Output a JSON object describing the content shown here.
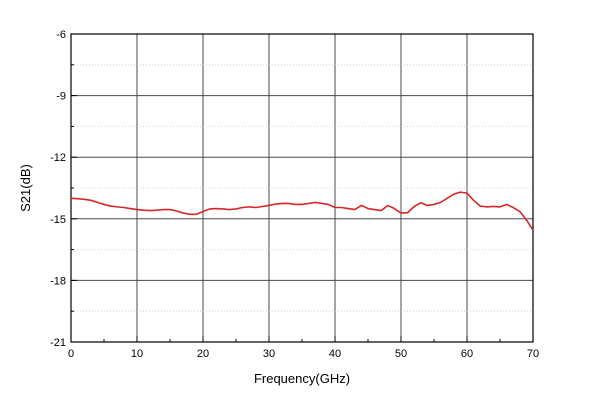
{
  "chart_data": {
    "type": "line",
    "title": "",
    "xlabel": "Frequency(GHz)",
    "ylabel": "S21(dB)",
    "xlim": [
      0,
      70
    ],
    "ylim": [
      -21,
      -6
    ],
    "x_ticks": [
      0,
      10,
      20,
      30,
      40,
      50,
      60,
      70
    ],
    "y_ticks": [
      -21,
      -18,
      -15,
      -12,
      -9,
      -6
    ],
    "x_tick_labels": [
      "0",
      "10",
      "20",
      "30",
      "40",
      "50",
      "60",
      "70"
    ],
    "y_tick_labels": [
      "-21",
      "-18",
      "-15",
      "-12",
      "-9",
      "-6"
    ],
    "grid": true,
    "series": [
      {
        "color": "#d62728",
        "x": [
          0,
          1,
          2,
          3,
          4,
          5,
          6,
          7,
          8,
          9,
          10,
          11,
          12,
          13,
          14,
          15,
          16,
          17,
          18,
          19,
          20,
          21,
          22,
          23,
          24,
          25,
          26,
          27,
          28,
          29,
          30,
          31,
          32,
          33,
          34,
          35,
          36,
          37,
          38,
          39,
          40,
          41,
          42,
          43,
          44,
          45,
          46,
          47,
          48,
          49,
          50,
          51,
          52,
          53,
          54,
          55,
          56,
          57,
          58,
          59,
          60,
          61,
          62,
          63,
          64,
          65,
          66,
          67,
          68,
          69,
          70
        ],
        "y": [
          -14.0,
          -14.02,
          -14.05,
          -14.1,
          -14.2,
          -14.3,
          -14.38,
          -14.42,
          -14.45,
          -14.5,
          -14.55,
          -14.58,
          -14.6,
          -14.58,
          -14.55,
          -14.55,
          -14.62,
          -14.72,
          -14.78,
          -14.78,
          -14.65,
          -14.52,
          -14.5,
          -14.52,
          -14.55,
          -14.52,
          -14.45,
          -14.42,
          -14.45,
          -14.4,
          -14.35,
          -14.28,
          -14.25,
          -14.25,
          -14.3,
          -14.3,
          -14.25,
          -14.2,
          -14.25,
          -14.3,
          -14.45,
          -14.45,
          -14.5,
          -14.55,
          -14.35,
          -14.5,
          -14.55,
          -14.6,
          -14.35,
          -14.5,
          -14.72,
          -14.7,
          -14.4,
          -14.22,
          -14.35,
          -14.3,
          -14.2,
          -14.0,
          -13.8,
          -13.7,
          -13.75,
          -14.1,
          -14.38,
          -14.42,
          -14.4,
          -14.42,
          -14.3,
          -14.45,
          -14.65,
          -15.05,
          -15.55
        ]
      }
    ]
  }
}
